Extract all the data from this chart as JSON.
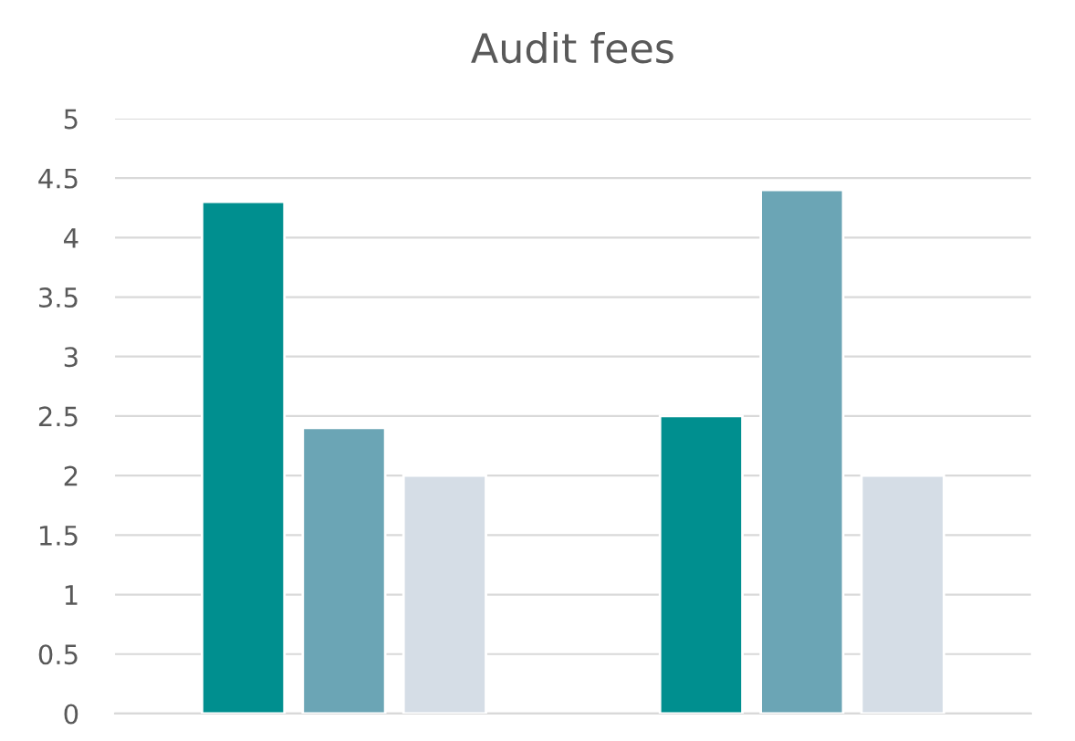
{
  "chart_data": {
    "type": "bar",
    "title": "Audit fees",
    "categories": [
      null,
      null
    ],
    "series": [
      {
        "color": "#008f8f",
        "values": [
          4.3,
          2.5
        ]
      },
      {
        "color": "#6ba5b5",
        "values": [
          2.4,
          4.4
        ]
      },
      {
        "color": "#d5dde6",
        "values": [
          2,
          2
        ]
      }
    ],
    "ylim": [
      0,
      5
    ],
    "yticks": [
      0,
      0.5,
      1,
      1.5,
      2,
      2.5,
      3,
      3.5,
      4,
      4.5,
      5
    ],
    "grid": "y",
    "tick_labels": "y"
  }
}
